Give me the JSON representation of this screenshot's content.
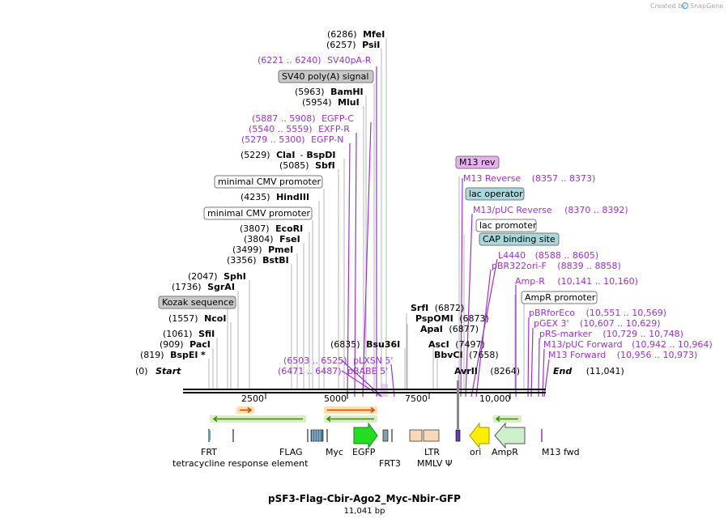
{
  "credit": {
    "prefix": "Created by",
    "brand": "SnapGene"
  },
  "map_title": "pSF3-Flag-Cbir-Ago2_Myc-Nbir-GFP",
  "map_length": "11,041 bp",
  "ruler": {
    "ticks": [
      "2500",
      "5000",
      "7500",
      "10,000"
    ]
  },
  "sites": [
    {
      "pos": "(6286)",
      "name": "MfeI"
    },
    {
      "pos": "(6257)",
      "name": "PsiI"
    },
    {
      "pos": "(5963)",
      "name": "BamHI"
    },
    {
      "pos": "(5954)",
      "name": "MluI"
    },
    {
      "pos": "(5229)",
      "name": "ClaI",
      "sep": "-",
      "name2": "BspDI"
    },
    {
      "pos": "(5085)",
      "name": "SbfI"
    },
    {
      "pos": "(4235)",
      "name": "HindIII"
    },
    {
      "pos": "(3807)",
      "name": "EcoRI"
    },
    {
      "pos": "(3804)",
      "name": "FseI"
    },
    {
      "pos": "(3499)",
      "name": "PmeI"
    },
    {
      "pos": "(3356)",
      "name": "BstBI"
    },
    {
      "pos": "(2047)",
      "name": "SphI"
    },
    {
      "pos": "(1736)",
      "name": "SgrAI"
    },
    {
      "pos": "(1557)",
      "name": "NcoI"
    },
    {
      "pos": "(1061)",
      "name": "SfiI"
    },
    {
      "pos": "(909)",
      "name": "PacI"
    },
    {
      "pos": "(819)",
      "name": "BspEI",
      "suffix": "*"
    },
    {
      "pos": "(0)",
      "name": "Start"
    },
    {
      "pos": "(6835)",
      "name": "Bsu36I"
    },
    {
      "pos": "(6872)",
      "name": "SrfI"
    },
    {
      "pos": "(6873)",
      "name": "PspOMI"
    },
    {
      "pos": "(6877)",
      "name": "ApaI"
    },
    {
      "pos": "(7497)",
      "name": "AscI"
    },
    {
      "pos": "(7658)",
      "name": "BbvCI"
    },
    {
      "pos": "(8264)",
      "name": "AvrII"
    },
    {
      "pos": "(11,041)",
      "name": "End"
    }
  ],
  "primers": [
    {
      "range": "(6221 .. 6240)",
      "name": "SV40pA-R"
    },
    {
      "range": "(5887 .. 5908)",
      "name": "EGFP-C"
    },
    {
      "range": "(5540 .. 5559)",
      "name": "EXFP-R"
    },
    {
      "range": "(5279 .. 5300)",
      "name": "EGFP-N"
    },
    {
      "range": "(6503 .. 6525)",
      "name": "pLXSN 5'"
    },
    {
      "range": "(6471 .. 6487)",
      "name": "pBABE 5'"
    },
    {
      "name": "M13 Reverse",
      "range": "(8357 .. 8373)"
    },
    {
      "name": "M13/pUC Reverse",
      "range": "(8370 .. 8392)"
    },
    {
      "name": "L4440",
      "range": "(8588 .. 8605)"
    },
    {
      "name": "pBR322ori-F",
      "range": "(8839 .. 8858)"
    },
    {
      "name": "Amp-R",
      "range": "(10,141 .. 10,160)"
    },
    {
      "name": "pBRforEco",
      "range": "(10,551 .. 10,569)"
    },
    {
      "name": "pGEX 3'",
      "range": "(10,607 .. 10,629)"
    },
    {
      "name": "pRS-marker",
      "range": "(10,729 .. 10,748)"
    },
    {
      "name": "M13/pUC Forward",
      "range": "(10,942 .. 10,964)"
    },
    {
      "name": "M13 Forward",
      "range": "(10,956 .. 10,973)"
    }
  ],
  "boxed": [
    {
      "label": "SV40 poly(A) signal",
      "color": "#c8c8c8"
    },
    {
      "label": "minimal CMV promoter",
      "color": "#ffffff"
    },
    {
      "label": "minimal CMV promoter",
      "color": "#ffffff"
    },
    {
      "label": "Kozak sequence",
      "color": "#c8c8c8"
    },
    {
      "label": "M13 rev",
      "color": "#e8b0f0"
    },
    {
      "label": "lac operator",
      "color": "#a8d8dc"
    },
    {
      "label": "lac promoter",
      "color": "#ffffff"
    },
    {
      "label": "CAP binding site",
      "color": "#a8d8dc"
    },
    {
      "label": "AmpR promoter",
      "color": "#ffffff"
    }
  ],
  "features": [
    "FRT",
    "tetracycline response element",
    "FLAG",
    "Myc",
    "EGFP",
    "FRT3",
    "LTR",
    "MMLV Ψ",
    "ori",
    "AmpR",
    "M13 fwd"
  ]
}
